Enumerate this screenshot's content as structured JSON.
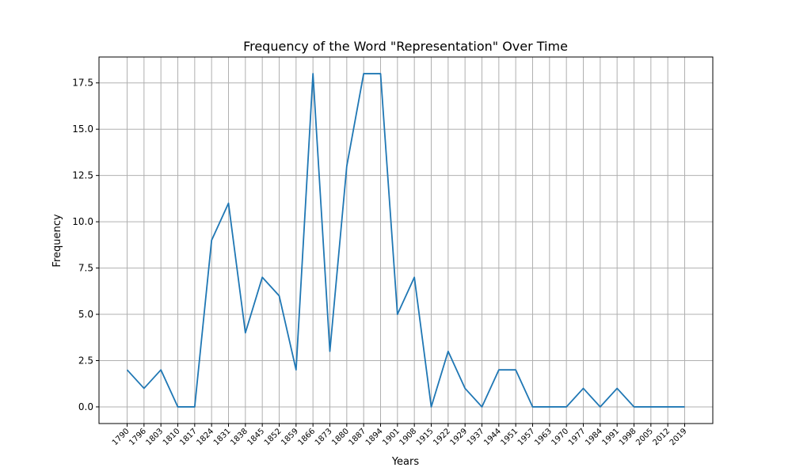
{
  "chart_data": {
    "type": "line",
    "title": "Frequency of the Word \"Representation\" Over Time",
    "xlabel": "Years",
    "ylabel": "Frequency",
    "x": [
      "1790",
      "1796",
      "1803",
      "1810",
      "1817",
      "1824",
      "1831",
      "1838",
      "1845",
      "1852",
      "1859",
      "1866",
      "1873",
      "1880",
      "1887",
      "1894",
      "1901",
      "1908",
      "1915",
      "1922",
      "1929",
      "1937",
      "1944",
      "1951",
      "1957",
      "1963",
      "1970",
      "1977",
      "1984",
      "1991",
      "1998",
      "2005",
      "2012",
      "2019"
    ],
    "series": [
      {
        "values": [
          2,
          1,
          2,
          0,
          0,
          9,
          11,
          4,
          7,
          6,
          2,
          18,
          3,
          13,
          18,
          18,
          5,
          7,
          0,
          3,
          1,
          0,
          2,
          2,
          0,
          0,
          0,
          1,
          0,
          1,
          0,
          0,
          0,
          0
        ]
      }
    ],
    "ylim": [
      -0.9,
      18.9
    ],
    "yticks": [
      "0.0",
      "2.5",
      "5.0",
      "7.5",
      "10.0",
      "12.5",
      "15.0",
      "17.5"
    ],
    "grid": true,
    "line_color": "#1f77b4"
  }
}
